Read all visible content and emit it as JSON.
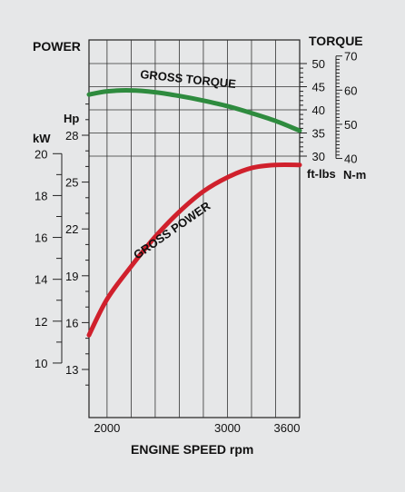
{
  "chart_data": {
    "type": "line",
    "x": [
      1850,
      2000,
      2200,
      2400,
      2600,
      2800,
      3000,
      3200,
      3400,
      3600
    ],
    "xlabel": "ENGINE SPEED rpm",
    "xticks": [
      2000,
      3000,
      3600
    ],
    "xlim": [
      1850,
      3600
    ],
    "series": [
      {
        "name": "GROSS TORQUE",
        "unit": "ft-lbs",
        "color": "#2e8b3e",
        "values": [
          43.3,
          44.0,
          44.2,
          43.8,
          43.0,
          42.0,
          40.8,
          39.3,
          37.6,
          35.5
        ]
      },
      {
        "name": "GROSS POWER",
        "unit": "Hp",
        "color": "#d0202c",
        "values": [
          15.2,
          17.5,
          19.6,
          21.5,
          23.1,
          24.4,
          25.3,
          25.9,
          26.1,
          26.1
        ]
      }
    ],
    "power_axis": {
      "title": "POWER",
      "kw_label": "kW",
      "hp_label": "Hp",
      "kw_ticks": [
        10,
        12,
        14,
        16,
        18,
        20
      ],
      "hp_ticks": [
        28,
        25,
        22,
        19,
        16,
        13
      ],
      "hp_range": [
        12,
        30
      ]
    },
    "torque_axis": {
      "title": "TORQUE",
      "ftlbs_label": "ft-lbs",
      "nm_label": "N-m",
      "ftlbs_ticks": [
        30,
        35,
        40,
        45,
        50
      ],
      "nm_ticks": [
        40,
        50,
        60,
        70
      ],
      "ftlbs_range": [
        30,
        50
      ]
    }
  }
}
